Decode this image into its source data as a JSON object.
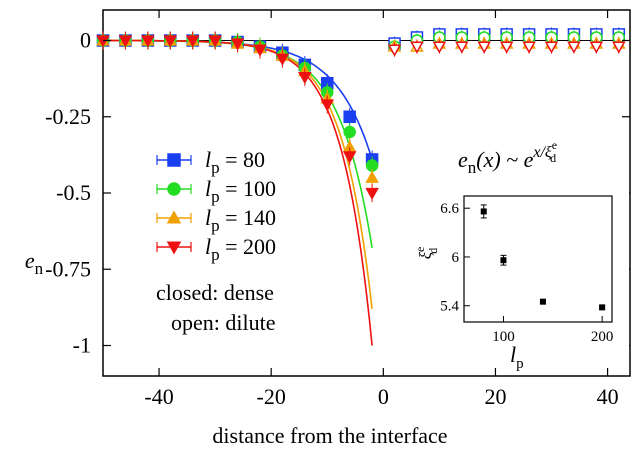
{
  "chart_data": {
    "type": "scatter",
    "xlabel": "distance from the interface",
    "ylabel_main": "e",
    "ylabel_sub": "n",
    "xlim": [
      -50,
      44
    ],
    "ylim": [
      -1.1,
      0.1
    ],
    "x_ticks": [
      -40,
      -20,
      0,
      20,
      40
    ],
    "x_tick_labels": [
      "-40",
      "-20",
      "0",
      "20",
      "40"
    ],
    "y_ticks": [
      0,
      -0.25,
      -0.5,
      -0.75,
      -1
    ],
    "y_tick_labels": [
      "0",
      "-0.25",
      "-0.5",
      "-0.75",
      "-1"
    ],
    "legend_position": "middle-left",
    "formula": {
      "lhs_sym": "e",
      "lhs_sub": "n",
      "lhs_arg": "(x) ~ e",
      "exp_x": "x/ξ",
      "exp_sub": "d",
      "exp_sup": "e"
    },
    "notes": [
      "closed: dense",
      "open: dilute"
    ],
    "series": [
      {
        "name_sym": "l",
        "name_sub": "p",
        "name_val": " = 80",
        "color": "#1a3ff0",
        "marker": "square",
        "x_dense": [
          -50,
          -46,
          -42,
          -38,
          -34,
          -30,
          -26,
          -22,
          -18,
          -14,
          -10,
          -6,
          -2
        ],
        "y_dense": [
          0,
          0,
          0,
          0,
          0,
          0,
          -0.005,
          -0.02,
          -0.04,
          -0.08,
          -0.14,
          -0.25,
          -0.39
        ],
        "x_dilute": [
          2,
          6,
          10,
          14,
          18,
          22,
          26,
          30,
          34,
          38,
          42
        ],
        "y_dilute": [
          -0.01,
          0.01,
          0.02,
          0.02,
          0.02,
          0.02,
          0.02,
          0.02,
          0.02,
          0.02,
          0.02
        ],
        "fit_xi": 6.56,
        "fit_end": -0.39
      },
      {
        "name_sym": "l",
        "name_sub": "p",
        "name_val": " = 100",
        "color": "#22dd22",
        "marker": "circle",
        "x_dense": [
          -50,
          -46,
          -42,
          -38,
          -34,
          -30,
          -26,
          -22,
          -18,
          -14,
          -10,
          -6,
          -2
        ],
        "y_dense": [
          0,
          0,
          0,
          0,
          0,
          0,
          -0.005,
          -0.02,
          -0.05,
          -0.09,
          -0.17,
          -0.3,
          -0.41
        ],
        "x_dilute": [
          2,
          6,
          10,
          14,
          18,
          22,
          26,
          30,
          34,
          38,
          42
        ],
        "y_dilute": [
          -0.02,
          0,
          0.01,
          0.01,
          0.01,
          0.01,
          0.01,
          0.01,
          0.01,
          0.01,
          0.01
        ],
        "fit_xi": 5.96,
        "fit_end": -0.68
      },
      {
        "name_sym": "l",
        "name_sub": "p",
        "name_val": " = 140",
        "color": "#f0a000",
        "marker": "triangle-up",
        "x_dense": [
          -50,
          -46,
          -42,
          -38,
          -34,
          -30,
          -26,
          -22,
          -18,
          -14,
          -10,
          -6,
          -2
        ],
        "y_dense": [
          0,
          0,
          0,
          0,
          0,
          0,
          -0.01,
          -0.025,
          -0.05,
          -0.1,
          -0.19,
          -0.35,
          -0.45
        ],
        "x_dilute": [
          2,
          6,
          10,
          14,
          18,
          22,
          26,
          30,
          34,
          38,
          42
        ],
        "y_dilute": [
          -0.02,
          -0.02,
          -0.01,
          -0.01,
          -0.01,
          -0.01,
          -0.01,
          -0.01,
          -0.01,
          -0.01,
          -0.01
        ],
        "fit_xi": 5.45,
        "fit_end": -0.88
      },
      {
        "name_sym": "l",
        "name_sub": "p",
        "name_val": " = 200",
        "color": "#ee1111",
        "marker": "triangle-down",
        "x_dense": [
          -50,
          -46,
          -42,
          -38,
          -34,
          -30,
          -26,
          -22,
          -18,
          -14,
          -10,
          -6,
          -2
        ],
        "y_dense": [
          0,
          0,
          0,
          0,
          0,
          0,
          -0.01,
          -0.03,
          -0.06,
          -0.12,
          -0.21,
          -0.38,
          -0.5
        ],
        "x_dilute": [
          2,
          6,
          10,
          14,
          18,
          22,
          26,
          30,
          34,
          38,
          42
        ],
        "y_dilute": [
          -0.03,
          -0.02,
          -0.02,
          -0.02,
          -0.02,
          -0.02,
          -0.02,
          -0.02,
          -0.02,
          -0.02,
          -0.02
        ],
        "fit_xi": 5.38,
        "fit_end": -1.0
      }
    ],
    "inset": {
      "xlabel_sym": "l",
      "xlabel_sub": "p",
      "ylabel_sym": "ξ",
      "ylabel_sub": "d",
      "ylabel_sup": "e",
      "xlim": [
        60,
        210
      ],
      "ylim": [
        5.2,
        6.75
      ],
      "x_ticks": [
        100,
        200
      ],
      "x_tick_labels": [
        "100",
        "200"
      ],
      "y_ticks": [
        5.4,
        6.0,
        6.6
      ],
      "y_tick_labels": [
        "5.4",
        "6",
        "6.6"
      ],
      "points": [
        {
          "x": 80,
          "y": 6.56,
          "err": 0.08
        },
        {
          "x": 100,
          "y": 5.96,
          "err": 0.06
        },
        {
          "x": 140,
          "y": 5.45,
          "err": 0.02
        },
        {
          "x": 200,
          "y": 5.38,
          "err": 0.02
        }
      ]
    }
  }
}
